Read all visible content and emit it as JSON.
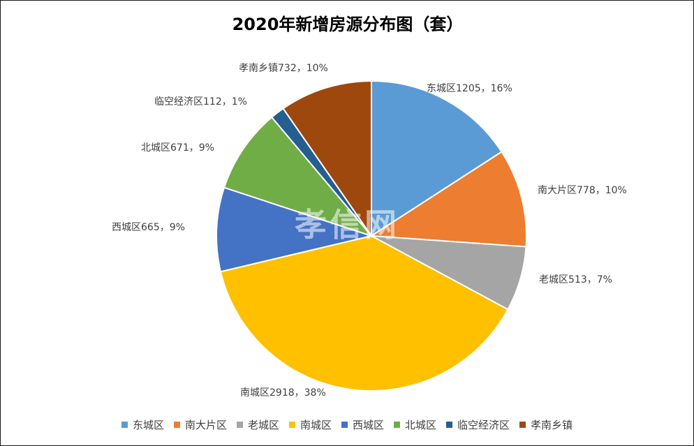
{
  "chart_data": {
    "type": "pie",
    "title": "2020年新增房源分布图（套）",
    "watermark": "孝信网",
    "legend_position": "bottom",
    "slices": [
      {
        "name": "东城区",
        "value": 1205,
        "percent": "16%",
        "color": "#5B9BD5"
      },
      {
        "name": "南大片区",
        "value": 778,
        "percent": "10%",
        "color": "#ED7D31"
      },
      {
        "name": "老城区",
        "value": 513,
        "percent": "7%",
        "color": "#A5A5A5"
      },
      {
        "name": "南城区",
        "value": 2918,
        "percent": "38%",
        "color": "#FFC000"
      },
      {
        "name": "西城区",
        "value": 665,
        "percent": "9%",
        "color": "#4472C4"
      },
      {
        "name": "北城区",
        "value": 671,
        "percent": "9%",
        "color": "#70AD47"
      },
      {
        "name": "临空经济区",
        "value": 112,
        "percent": "1%",
        "color": "#255E91"
      },
      {
        "name": "孝南乡镇",
        "value": 732,
        "percent": "10%",
        "color": "#9E480E"
      }
    ]
  }
}
